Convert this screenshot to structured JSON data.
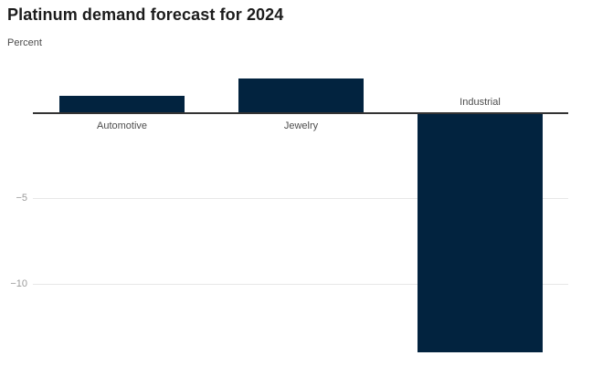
{
  "header": {
    "title": "Platinum demand forecast for 2024",
    "subtitle": "Percent"
  },
  "chart_data": {
    "type": "bar",
    "title": "Platinum demand forecast for 2024",
    "subtitle": "Percent",
    "categories": [
      "Automotive",
      "Jewelry",
      "Industrial"
    ],
    "values": [
      1,
      2,
      -14
    ],
    "xlabel": "",
    "ylabel": "Percent",
    "ylim": [
      -14.5,
      2.5
    ],
    "yticks": [
      -5,
      -10
    ],
    "ytick_labels": [
      "−5",
      "−10"
    ],
    "grid": "horizontal gridlines at y ticks, zero baseline emphasized",
    "legend_position": "none",
    "bar_color": "#02233f"
  },
  "colors": {
    "bar": "#02233f",
    "axis_line": "#333333",
    "gridline": "#e7e7e7",
    "tick_label": "#9b9b9b",
    "category_label": "#4d4d4d",
    "title": "#1c1c1c",
    "subtitle": "#4a4a4a",
    "background": "#ffffff"
  }
}
